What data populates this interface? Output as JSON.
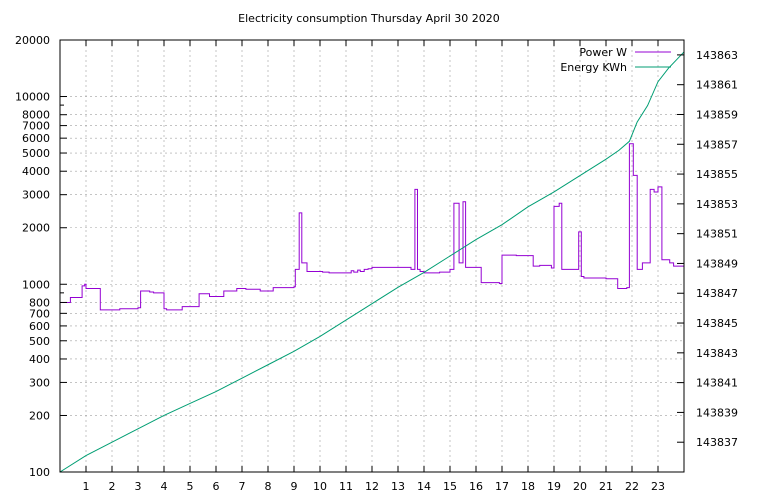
{
  "chart_data": {
    "type": "line",
    "title": "Electricity consumption Thursday April 30 2020",
    "xlabel": "",
    "ylabel": "",
    "y2label": "",
    "xlim": [
      0,
      24
    ],
    "ylim": [
      100,
      20000
    ],
    "yscale": "log",
    "y2lim": [
      143835,
      143864
    ],
    "grid": true,
    "legend_position": "top-right",
    "x_ticks": [
      1,
      2,
      3,
      4,
      5,
      6,
      7,
      8,
      9,
      10,
      11,
      12,
      13,
      14,
      15,
      16,
      17,
      18,
      19,
      20,
      21,
      22,
      23
    ],
    "y_ticks": [
      100,
      200,
      300,
      400,
      500,
      600,
      700,
      800,
      1000,
      2000,
      3000,
      4000,
      5000,
      6000,
      7000,
      8000,
      10000,
      20000
    ],
    "y2_ticks": [
      143837,
      143839,
      143841,
      143843,
      143845,
      143847,
      143849,
      143851,
      143853,
      143855,
      143857,
      143859,
      143861,
      143863
    ],
    "colors": {
      "power": "#9400d3",
      "energy": "#009e73"
    },
    "series": [
      {
        "name": "Power W",
        "axis": "left",
        "step": true,
        "x": [
          0,
          0.4,
          0.85,
          0.95,
          1.0,
          1.55,
          2.3,
          3.0,
          3.1,
          3.45,
          3.6,
          4.0,
          4.1,
          4.7,
          5.35,
          5.75,
          6.3,
          6.8,
          7.15,
          7.7,
          8.2,
          9.0,
          9.05,
          9.2,
          9.3,
          9.5,
          10.1,
          10.35,
          11.2,
          11.3,
          11.45,
          11.55,
          11.7,
          11.85,
          12.0,
          13.5,
          13.65,
          13.75,
          13.85,
          14.0,
          14.6,
          15.0,
          15.15,
          15.35,
          15.5,
          15.6,
          16.2,
          16.9,
          17.0,
          17.55,
          18.2,
          18.45,
          18.9,
          19.0,
          19.2,
          19.3,
          19.95,
          20.05,
          20.15,
          21.0,
          21.45,
          21.8,
          21.9,
          22.05,
          22.2,
          22.4,
          22.7,
          22.85,
          23.0,
          23.15,
          23.45,
          23.6,
          24.0
        ],
        "values": [
          800,
          850,
          980,
          1000,
          950,
          730,
          740,
          750,
          920,
          910,
          900,
          740,
          730,
          760,
          890,
          860,
          920,
          950,
          940,
          920,
          960,
          970,
          1200,
          2400,
          1300,
          1170,
          1160,
          1150,
          1180,
          1160,
          1190,
          1170,
          1200,
          1210,
          1230,
          1200,
          3200,
          1200,
          1170,
          1150,
          1160,
          1200,
          2700,
          1300,
          2750,
          1230,
          1020,
          1010,
          1430,
          1420,
          1250,
          1260,
          1220,
          2600,
          2700,
          1200,
          1900,
          1100,
          1080,
          1070,
          950,
          960,
          5600,
          3800,
          1200,
          1300,
          3200,
          3100,
          3300,
          1350,
          1300,
          1250,
          1200
        ]
      },
      {
        "name": "Energy KWh",
        "axis": "right",
        "x": [
          0,
          1,
          2,
          3,
          4,
          5,
          6,
          7,
          8,
          9,
          10,
          11,
          12,
          13,
          14,
          15,
          16,
          17,
          18,
          19,
          20,
          21,
          21.5,
          21.9,
          22.2,
          22.6,
          23.0,
          23.4,
          24.0
        ],
        "values": [
          143835.0,
          143836.1,
          143837.0,
          143837.9,
          143838.8,
          143839.6,
          143840.4,
          143841.3,
          143842.2,
          143843.1,
          143844.1,
          143845.2,
          143846.3,
          143847.4,
          143848.4,
          143849.5,
          143850.6,
          143851.6,
          143852.8,
          143853.8,
          143854.9,
          143856.0,
          143856.6,
          143857.2,
          143858.5,
          143859.6,
          143861.2,
          143862.1,
          143863.2
        ]
      }
    ]
  }
}
